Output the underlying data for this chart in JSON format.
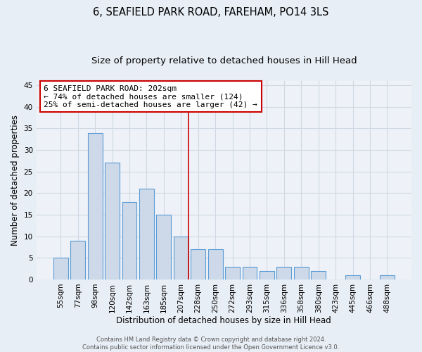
{
  "title": "6, SEAFIELD PARK ROAD, FAREHAM, PO14 3LS",
  "subtitle": "Size of property relative to detached houses in Hill Head",
  "xlabel": "Distribution of detached houses by size in Hill Head",
  "ylabel": "Number of detached properties",
  "categories": [
    "55sqm",
    "77sqm",
    "98sqm",
    "120sqm",
    "142sqm",
    "163sqm",
    "185sqm",
    "207sqm",
    "228sqm",
    "250sqm",
    "272sqm",
    "293sqm",
    "315sqm",
    "336sqm",
    "358sqm",
    "380sqm",
    "423sqm",
    "445sqm",
    "466sqm",
    "488sqm"
  ],
  "values": [
    5,
    9,
    34,
    27,
    18,
    21,
    15,
    10,
    7,
    7,
    3,
    3,
    2,
    3,
    3,
    2,
    0,
    1,
    0,
    1
  ],
  "bar_color": "#cdd9e8",
  "bar_edge_color": "#5b9bd5",
  "vline_x_index": 7,
  "vline_color": "#cc0000",
  "annotation_text": "6 SEAFIELD PARK ROAD: 202sqm\n← 74% of detached houses are smaller (124)\n25% of semi-detached houses are larger (42) →",
  "annotation_box_color": "#ffffff",
  "annotation_box_edge_color": "#cc0000",
  "ylim": [
    0,
    46
  ],
  "yticks": [
    0,
    5,
    10,
    15,
    20,
    25,
    30,
    35,
    40,
    45
  ],
  "bg_color": "#e8eef5",
  "plot_bg_color": "#eef2f8",
  "grid_color": "#d0d8e4",
  "footer": "Contains HM Land Registry data © Crown copyright and database right 2024.\nContains public sector information licensed under the Open Government Licence v3.0.",
  "title_fontsize": 10.5,
  "subtitle_fontsize": 9.5,
  "xlabel_fontsize": 8.5,
  "ylabel_fontsize": 8.5,
  "tick_fontsize": 7.5,
  "footer_fontsize": 6.0,
  "annot_fontsize": 8.0
}
